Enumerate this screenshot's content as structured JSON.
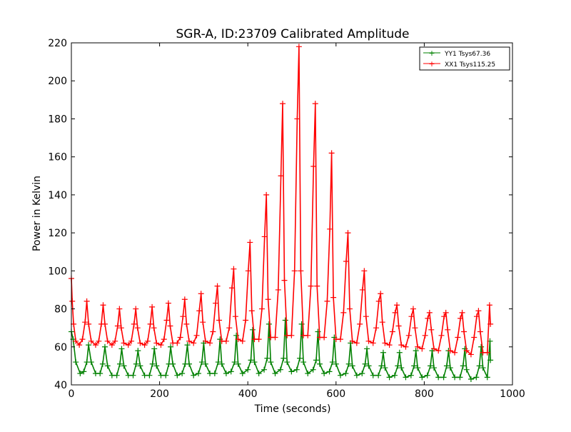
{
  "chart_data": {
    "type": "line",
    "title": "SGR-A, ID:23709 Calibrated Amplitude",
    "xlabel": "Time (seconds)",
    "ylabel": "Power in Kelvin",
    "xlim": [
      0,
      1000
    ],
    "ylim": [
      40,
      220
    ],
    "xticks": [
      0,
      200,
      400,
      600,
      800,
      1000
    ],
    "yticks": [
      40,
      60,
      80,
      100,
      120,
      140,
      160,
      180,
      200,
      220
    ],
    "grid": false,
    "legend_position": "top-right",
    "marker": "plus",
    "series": [
      {
        "name": "YY1 Tsys67.36",
        "color": "#008000",
        "x": [
          0,
          4,
          10,
          20,
          28,
          35,
          39,
          45,
          55,
          65,
          71,
          76,
          82,
          92,
          103,
          110,
          114,
          119,
          129,
          140,
          147,
          151,
          156,
          166,
          177,
          184,
          188,
          193,
          203,
          214,
          221,
          225,
          230,
          240,
          251,
          258,
          263,
          267,
          277,
          288,
          296,
          300,
          304,
          314,
          325,
          333,
          337,
          341,
          351,
          362,
          370,
          374,
          378,
          388,
          400,
          407,
          411,
          415,
          425,
          437,
          444,
          448,
          452,
          462,
          474,
          481,
          485,
          489,
          499,
          511,
          518,
          522,
          526,
          536,
          548,
          555,
          559,
          563,
          573,
          585,
          592,
          596,
          600,
          610,
          622,
          629,
          633,
          637,
          647,
          659,
          666,
          670,
          674,
          684,
          696,
          703,
          707,
          711,
          721,
          733,
          740,
          744,
          748,
          758,
          770,
          777,
          781,
          785,
          795,
          807,
          814,
          818,
          822,
          832,
          844,
          851,
          855,
          859,
          869,
          881,
          888,
          892,
          896,
          906,
          918,
          925,
          929,
          933,
          943,
          949,
          950
        ],
        "values": [
          68,
          64,
          52,
          46,
          47,
          52,
          61,
          52,
          46,
          46,
          51,
          60,
          50,
          45,
          45,
          51,
          59,
          50,
          45,
          45,
          51,
          58,
          50,
          45,
          45,
          51,
          59,
          50,
          45,
          45,
          51,
          60,
          51,
          45,
          46,
          51,
          61,
          51,
          45,
          46,
          52,
          62,
          51,
          46,
          46,
          52,
          64,
          51,
          46,
          47,
          52,
          66,
          51,
          46,
          48,
          53,
          69,
          52,
          46,
          48,
          54,
          72,
          52,
          46,
          48,
          54,
          74,
          52,
          47,
          48,
          54,
          72,
          52,
          46,
          48,
          53,
          68,
          51,
          46,
          47,
          52,
          65,
          51,
          45,
          46,
          51,
          62,
          50,
          45,
          46,
          51,
          59,
          50,
          45,
          45,
          50,
          57,
          49,
          44,
          45,
          50,
          57,
          49,
          44,
          45,
          50,
          58,
          49,
          44,
          45,
          50,
          58,
          49,
          44,
          44,
          50,
          58,
          49,
          44,
          44,
          50,
          59,
          48,
          43,
          44,
          50,
          60,
          49,
          44,
          63,
          53
        ]
      },
      {
        "name": "XX1 Tsys115.25",
        "color": "#ff0000",
        "x": [
          0,
          2,
          5,
          10,
          18,
          25,
          31,
          35,
          39,
          45,
          55,
          62,
          68,
          72,
          76,
          82,
          92,
          99,
          105,
          109,
          113,
          119,
          129,
          136,
          142,
          146,
          150,
          156,
          166,
          173,
          179,
          183,
          187,
          193,
          203,
          210,
          216,
          220,
          224,
          230,
          240,
          247,
          253,
          257,
          261,
          267,
          277,
          284,
          290,
          294,
          298,
          304,
          314,
          321,
          327,
          331,
          335,
          341,
          351,
          358,
          364,
          368,
          372,
          378,
          388,
          395,
          401,
          405,
          409,
          415,
          425,
          432,
          438,
          442,
          446,
          452,
          462,
          469,
          475,
          479,
          483,
          489,
          499,
          506,
          512,
          516,
          520,
          526,
          536,
          543,
          549,
          553,
          557,
          563,
          573,
          580,
          586,
          590,
          594,
          600,
          610,
          617,
          623,
          627,
          631,
          637,
          647,
          654,
          660,
          664,
          668,
          674,
          684,
          691,
          697,
          701,
          705,
          711,
          721,
          728,
          734,
          738,
          742,
          748,
          758,
          765,
          771,
          775,
          779,
          785,
          795,
          802,
          808,
          812,
          816,
          822,
          832,
          839,
          845,
          849,
          853,
          859,
          869,
          876,
          882,
          886,
          890,
          896,
          906,
          913,
          919,
          923,
          927,
          933,
          943,
          948,
          950
        ],
        "values": [
          96,
          84,
          72,
          63,
          61,
          64,
          73,
          84,
          72,
          63,
          61,
          63,
          72,
          82,
          72,
          63,
          61,
          63,
          71,
          80,
          70,
          62,
          61,
          63,
          72,
          80,
          70,
          62,
          61,
          63,
          72,
          81,
          70,
          62,
          61,
          64,
          74,
          83,
          71,
          62,
          62,
          65,
          76,
          85,
          72,
          63,
          62,
          66,
          79,
          88,
          73,
          63,
          62,
          68,
          83,
          92,
          74,
          63,
          63,
          70,
          91,
          101,
          76,
          64,
          63,
          74,
          100,
          115,
          79,
          64,
          64,
          80,
          118,
          140,
          85,
          65,
          65,
          90,
          150,
          188,
          95,
          66,
          66,
          100,
          180,
          218,
          100,
          66,
          66,
          92,
          155,
          188,
          92,
          65,
          65,
          84,
          122,
          162,
          86,
          64,
          64,
          78,
          105,
          120,
          80,
          63,
          62,
          72,
          90,
          100,
          76,
          63,
          62,
          70,
          84,
          88,
          73,
          62,
          61,
          68,
          78,
          82,
          71,
          61,
          60,
          66,
          76,
          80,
          70,
          60,
          59,
          66,
          75,
          78,
          69,
          59,
          58,
          66,
          76,
          78,
          69,
          58,
          57,
          65,
          75,
          78,
          68,
          58,
          56,
          65,
          76,
          79,
          68,
          57,
          57,
          82,
          72
        ]
      }
    ]
  }
}
